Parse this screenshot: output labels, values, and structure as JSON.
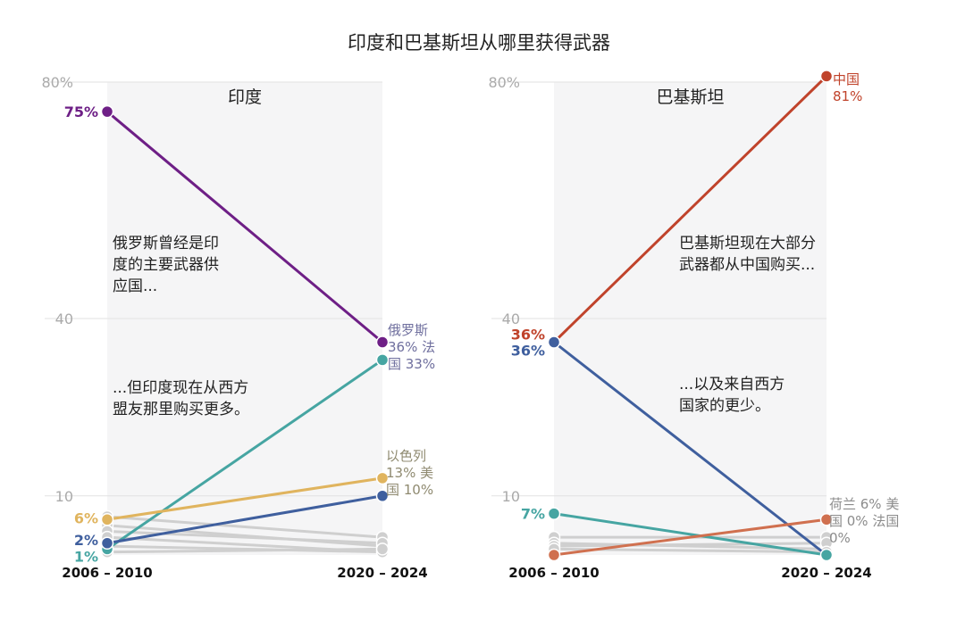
{
  "title": "印度和巴基斯坦从哪里获得武器",
  "chart_data": [
    {
      "type": "line",
      "title": "印度",
      "x": [
        "2006 – 2010",
        "2020 – 2024"
      ],
      "y_ticks": [
        "80%",
        "40",
        "10"
      ],
      "y_tick_values": [
        80,
        40,
        10
      ],
      "ylim": [
        0,
        80
      ],
      "grid": true,
      "series": [
        {
          "name": "俄罗斯",
          "values": [
            75,
            36
          ],
          "color": "#6e1f86",
          "start_label": "75%"
        },
        {
          "name": "法国",
          "values": [
            1,
            33
          ],
          "color": "#46a5a2",
          "start_label": "1%"
        },
        {
          "name": "以色列",
          "values": [
            6,
            13
          ],
          "color": "#e0b45e",
          "start_label": "6%"
        },
        {
          "name": "美国",
          "values": [
            2,
            10
          ],
          "color": "#3f5f9e",
          "start_label": "2%"
        },
        {
          "name": "",
          "values": [
            6.5,
            3
          ],
          "color": "#cfcfcf"
        },
        {
          "name": "",
          "values": [
            5,
            1.5
          ],
          "color": "#cfcfcf"
        },
        {
          "name": "",
          "values": [
            4,
            2
          ],
          "color": "#cfcfcf"
        },
        {
          "name": "",
          "values": [
            3,
            0.5
          ],
          "color": "#cfcfcf"
        },
        {
          "name": "",
          "values": [
            1.5,
            0.5
          ],
          "color": "#cfcfcf"
        },
        {
          "name": "",
          "values": [
            0.5,
            1
          ],
          "color": "#cfcfcf"
        }
      ],
      "end_labels": [
        {
          "lines": [
            "俄罗斯",
            "36% 法",
            "国 33%"
          ],
          "color": "#6f6f9e"
        },
        {
          "lines": [
            "以色列",
            "13% 美",
            "国 10%"
          ],
          "color": "#8f8a70"
        }
      ],
      "annotations": [
        {
          "lines": [
            "俄罗斯曾经是印",
            "度的主要武器供",
            "应国..."
          ]
        },
        {
          "lines": [
            "...但印度现在从西方",
            "盟友那里购买更多。"
          ]
        }
      ]
    },
    {
      "type": "line",
      "title": "巴基斯坦",
      "x": [
        "2006 – 2010",
        "2020 – 2024"
      ],
      "y_ticks": [
        "80%",
        "40",
        "10"
      ],
      "y_tick_values": [
        80,
        40,
        10
      ],
      "ylim": [
        0,
        80
      ],
      "grid": true,
      "series": [
        {
          "name": "中国",
          "values": [
            36,
            81
          ],
          "color": "#c0432b",
          "start_label": "36%"
        },
        {
          "name": "美国",
          "values": [
            36,
            0
          ],
          "color": "#3f5f9e",
          "start_label": "36%"
        },
        {
          "name": "",
          "values": [
            7,
            0
          ],
          "color": "#46a5a2",
          "start_label": "7%"
        },
        {
          "name": "荷兰",
          "values": [
            0,
            6
          ],
          "color": "#d0704f"
        },
        {
          "name": "",
          "values": [
            3,
            3
          ],
          "color": "#cfcfcf"
        },
        {
          "name": "",
          "values": [
            2,
            1
          ],
          "color": "#cfcfcf"
        },
        {
          "name": "",
          "values": [
            1.5,
            2
          ],
          "color": "#cfcfcf"
        },
        {
          "name": "",
          "values": [
            1,
            0.5
          ],
          "color": "#cfcfcf"
        }
      ],
      "end_labels": [
        {
          "lines": [
            "中国",
            "81%"
          ],
          "color": "#c0432b"
        },
        {
          "lines": [
            "荷兰 6% 美",
            "国 0% 法国",
            "0%"
          ],
          "color": "#8c8c8c"
        }
      ],
      "annotations": [
        {
          "lines": [
            "巴基斯坦现在大部分",
            "武器都从中国购买..."
          ]
        },
        {
          "lines": [
            "...以及来自西方",
            "国家的更少。"
          ]
        }
      ]
    }
  ]
}
